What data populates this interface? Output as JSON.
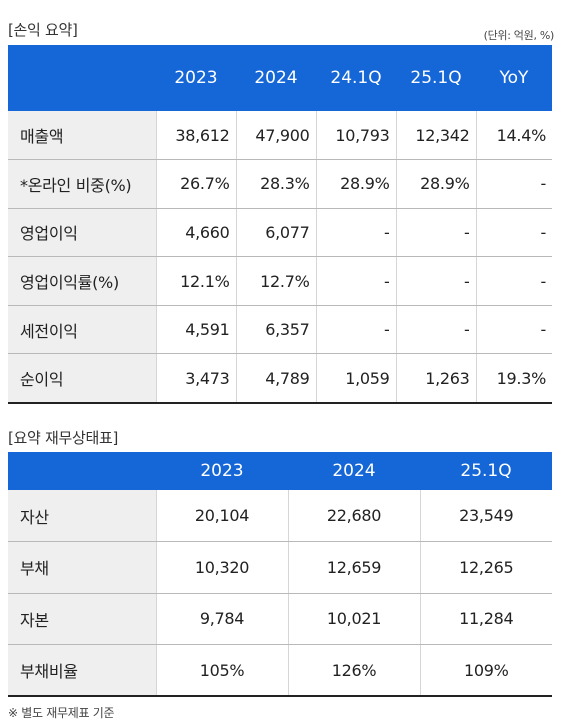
{
  "income": {
    "title": "[손익 요약]",
    "unit": "(단위: 억원, %)",
    "headers": [
      "",
      "2023",
      "2024",
      "24.1Q",
      "25.1Q",
      "YoY"
    ],
    "rows": [
      [
        "매출액",
        "38,612",
        "47,900",
        "10,793",
        "12,342",
        "14.4%"
      ],
      [
        "*온라인 비중(%)",
        "26.7%",
        "28.3%",
        "28.9%",
        "28.9%",
        "-"
      ],
      [
        "영업이익",
        "4,660",
        "6,077",
        "-",
        "-",
        "-"
      ],
      [
        "영업이익률(%)",
        "12.1%",
        "12.7%",
        "-",
        "-",
        "-"
      ],
      [
        "세전이익",
        "4,591",
        "6,357",
        "-",
        "-",
        "-"
      ],
      [
        "순이익",
        "3,473",
        "4,789",
        "1,059",
        "1,263",
        "19.3%"
      ]
    ]
  },
  "balance": {
    "title": "[요약 재무상태표]",
    "headers": [
      "",
      "2023",
      "2024",
      "25.1Q"
    ],
    "rows": [
      [
        "자산",
        "20,104",
        "22,680",
        "23,549"
      ],
      [
        "부채",
        "10,320",
        "12,659",
        "12,265"
      ],
      [
        "자본",
        "9,784",
        "10,021",
        "11,284"
      ],
      [
        "부채비율",
        "105%",
        "126%",
        "109%"
      ]
    ]
  },
  "footnote": "※ 별도 재무제표 기준"
}
